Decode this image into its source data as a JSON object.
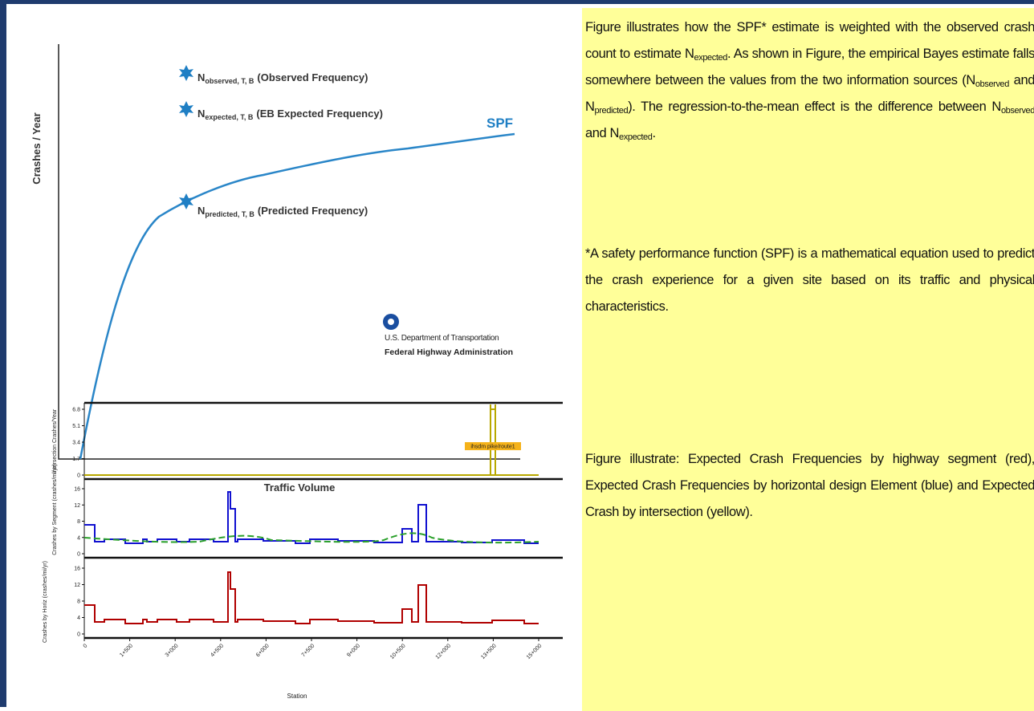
{
  "figure1": {
    "y_axis_title": "Crashes / Year",
    "x_axis_title": "Traffic Volume",
    "curve_label": "SPF",
    "points": [
      {
        "symbol": "N",
        "sub": "observed, T, B",
        "label": "(Observed Frequency)"
      },
      {
        "symbol": "N",
        "sub": "expected, T, B",
        "label": "(EB Expected Frequency)"
      },
      {
        "symbol": "N",
        "sub": "predicted, T, B",
        "label": "(Predicted Frequency)"
      }
    ],
    "logo": {
      "line1": "U.S. Department of Transportation",
      "line2": "Federal Highway Administration"
    }
  },
  "figure2": {
    "x_title": "Station",
    "xlim": [
      0,
      15000
    ],
    "xticks": [
      {
        "value": 0,
        "label": "0"
      },
      {
        "value": 1500,
        "label": "1+500"
      },
      {
        "value": 3000,
        "label": "3+000"
      },
      {
        "value": 4500,
        "label": "4+500"
      },
      {
        "value": 6000,
        "label": "6+000"
      },
      {
        "value": 7500,
        "label": "7+500"
      },
      {
        "value": 9000,
        "label": "9+000"
      },
      {
        "value": 10500,
        "label": "10+500"
      },
      {
        "value": 12000,
        "label": "12+000"
      },
      {
        "value": 13500,
        "label": "13+500"
      },
      {
        "value": 15000,
        "label": "15+000"
      }
    ],
    "panels": [
      {
        "y_title": "Intersection Crashes/Year",
        "ylim": [
          0,
          6.8
        ],
        "yticks": [
          0,
          1.7,
          3.4,
          5.1,
          6.8
        ],
        "annotation": "ihsdm pike/route1"
      },
      {
        "y_title": "Crashes by Segment (crashes/mi/yr)",
        "ylim": [
          0,
          16
        ],
        "yticks": [
          0,
          4,
          8,
          12,
          16
        ]
      },
      {
        "y_title": "Crashes by Horiz (crashes/mi/yr)",
        "ylim": [
          0,
          16
        ],
        "yticks": [
          0,
          4,
          8,
          12,
          16
        ]
      }
    ]
  },
  "text": {
    "paragraphs": [
      [
        "Figure illustrates how the SPF* estimate is weighted with the observed crash count to estimate N",
        {
          "sub": "expected"
        },
        ". As shown in Figure, the empirical Bayes estimate falls somewhere between the values from the two information sources (N",
        {
          "sub": "observed"
        },
        " and N",
        {
          "sub": "predicted"
        },
        "). The regression-to-the-mean effect is the difference between N",
        {
          "sub": "observed"
        },
        " and N",
        {
          "sub": "expected"
        },
        "."
      ],
      [
        "*A safety performance function (SPF) is a mathematical equation used to predict the crash experience for a given site based on its traffic and physical characteristics."
      ],
      [
        "Figure illustrate: Expected Crash Frequencies by highway segment (red), Expected Crash Frequencies by horizontal design Element (blue) and Expected Crash by intersection (yellow)."
      ]
    ]
  }
}
